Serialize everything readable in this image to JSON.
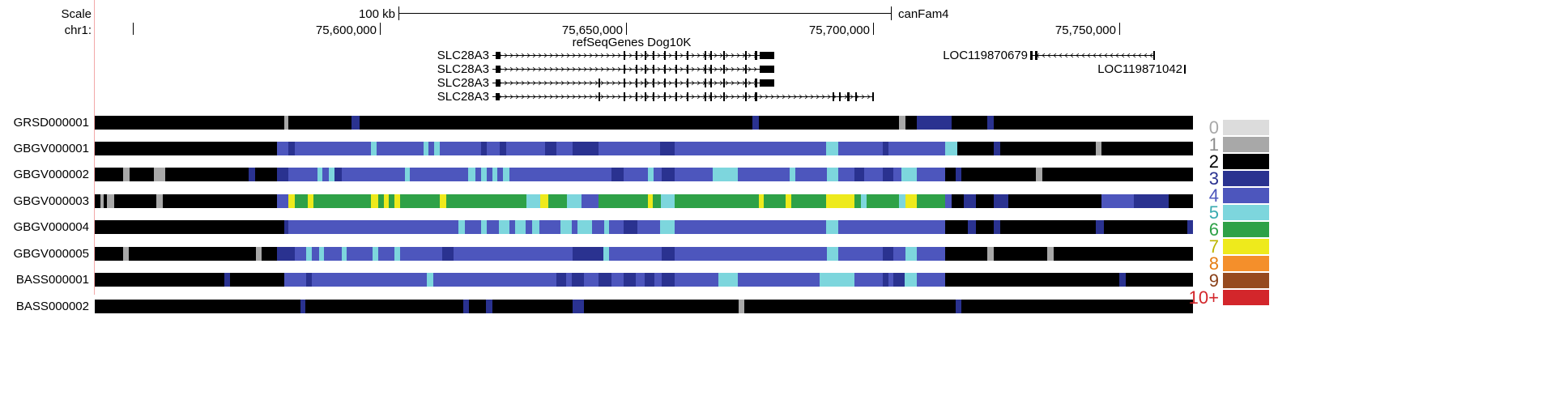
{
  "header": {
    "scale_label": "Scale",
    "chrom_label": "chr1:",
    "scale_bar_label": "100 kb",
    "assembly": "canFam4",
    "track_title": "refSeqGenes Dog10K",
    "position_ticks": [
      "75,600,000",
      "75,650,000",
      "75,700,000",
      "75,750,000"
    ]
  },
  "genes": [
    {
      "name": "SLC28A3",
      "strand": "+"
    },
    {
      "name": "SLC28A3",
      "strand": "+"
    },
    {
      "name": "SLC28A3",
      "strand": "+"
    },
    {
      "name": "SLC28A3",
      "strand": "+"
    },
    {
      "name": "LOC119870679",
      "strand": "-"
    },
    {
      "name": "LOC119871042",
      "strand": ""
    }
  ],
  "tracks": [
    {
      "name": "GRSD000001"
    },
    {
      "name": "GBGV000001"
    },
    {
      "name": "GBGV000002"
    },
    {
      "name": "GBGV000003"
    },
    {
      "name": "GBGV000004"
    },
    {
      "name": "GBGV000005"
    },
    {
      "name": "BASS000001"
    },
    {
      "name": "BASS000002"
    }
  ],
  "legend": {
    "title": "",
    "items": [
      {
        "label": "0",
        "color": "#dcdcdc",
        "text_color": "#a8a8a8"
      },
      {
        "label": "1",
        "color": "#a8a8a8",
        "text_color": "#8c8c8c"
      },
      {
        "label": "2",
        "color": "#000000",
        "text_color": "#000000"
      },
      {
        "label": "3",
        "color": "#2a3290",
        "text_color": "#2a3290"
      },
      {
        "label": "4",
        "color": "#4d56bd",
        "text_color": "#4d56bd"
      },
      {
        "label": "5",
        "color": "#7dd6dd",
        "text_color": "#3aabb0"
      },
      {
        "label": "6",
        "color": "#2ea147",
        "text_color": "#2ea147"
      },
      {
        "label": "7",
        "color": "#eeea1c",
        "text_color": "#bdb600"
      },
      {
        "label": "8",
        "color": "#f48f2b",
        "text_color": "#e67e14"
      },
      {
        "label": "9",
        "color": "#964a1f",
        "text_color": "#8a4018"
      },
      {
        "label": "10+",
        "color": "#d3262b",
        "text_color": "#d3262b"
      }
    ]
  }
}
